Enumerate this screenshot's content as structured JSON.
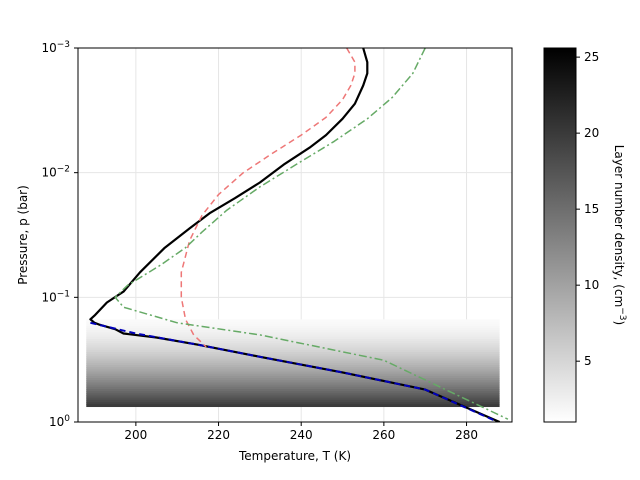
{
  "chart_data": {
    "type": "line",
    "xlabel": "Temperature, T (K)",
    "ylabel": "Pressure, p (bar)",
    "xlim": [
      186,
      291
    ],
    "ylim": [
      1.0,
      0.001
    ],
    "yscale": "log",
    "y_inverted": true,
    "grid": true,
    "legend": "none",
    "x_ticks": [
      200,
      220,
      240,
      260,
      280
    ],
    "y_ticks": [
      {
        "value": 1.0,
        "label_base": "10",
        "label_exp": "0"
      },
      {
        "value": 0.1,
        "label_base": "10",
        "label_exp": "−1"
      },
      {
        "value": 0.01,
        "label_base": "10",
        "label_exp": "−2"
      },
      {
        "value": 0.001,
        "label_base": "10",
        "label_exp": "−3"
      }
    ],
    "series": [
      {
        "color": "#000000",
        "style": "solid",
        "points": [
          [
            255,
            0.001
          ],
          [
            256,
            0.0013
          ],
          [
            256,
            0.0016
          ],
          [
            255,
            0.002
          ],
          [
            253,
            0.0028
          ],
          [
            250,
            0.0037
          ],
          [
            246,
            0.005
          ],
          [
            242,
            0.0063
          ],
          [
            236,
            0.0085
          ],
          [
            230,
            0.012
          ],
          [
            224,
            0.016
          ],
          [
            218,
            0.021
          ],
          [
            213,
            0.028
          ],
          [
            207,
            0.04
          ],
          [
            201,
            0.063
          ],
          [
            197,
            0.09
          ],
          [
            193,
            0.11
          ],
          [
            190,
            0.14
          ],
          [
            189,
            0.15
          ],
          [
            190,
            0.16
          ],
          [
            191,
            0.165
          ],
          [
            195,
            0.18
          ],
          [
            197,
            0.195
          ],
          [
            205,
            0.21
          ],
          [
            215,
            0.24
          ],
          [
            230,
            0.3
          ],
          [
            250,
            0.4
          ],
          [
            270,
            0.55
          ],
          [
            288,
            1.0
          ]
        ]
      },
      {
        "color": "#0000bb",
        "style": "dashed",
        "points": [
          [
            189,
            0.16
          ],
          [
            200,
            0.195
          ],
          [
            215,
            0.24
          ],
          [
            230,
            0.3
          ],
          [
            250,
            0.4
          ],
          [
            270,
            0.55
          ],
          [
            287,
            0.98
          ]
        ]
      },
      {
        "color": "#ee7777",
        "style": "dashed",
        "points": [
          [
            251,
            0.001
          ],
          [
            253,
            0.0013
          ],
          [
            253,
            0.0016
          ],
          [
            252,
            0.002
          ],
          [
            250,
            0.0026
          ],
          [
            246,
            0.0036
          ],
          [
            240,
            0.005
          ],
          [
            233,
            0.007
          ],
          [
            226,
            0.01
          ],
          [
            220,
            0.015
          ],
          [
            216,
            0.022
          ],
          [
            213,
            0.035
          ],
          [
            211,
            0.063
          ],
          [
            211,
            0.1
          ],
          [
            212,
            0.15
          ],
          [
            214,
            0.2
          ],
          [
            217,
            0.25
          ]
        ]
      },
      {
        "color": "#66aa66",
        "style": "dashdot",
        "points": [
          [
            270,
            0.001
          ],
          [
            267,
            0.0016
          ],
          [
            262,
            0.0025
          ],
          [
            256,
            0.0037
          ],
          [
            248,
            0.0056
          ],
          [
            239,
            0.0085
          ],
          [
            230,
            0.013
          ],
          [
            222,
            0.02
          ],
          [
            216,
            0.03
          ],
          [
            212,
            0.04
          ],
          [
            206,
            0.055
          ],
          [
            198,
            0.08
          ],
          [
            195,
            0.1
          ],
          [
            197,
            0.12
          ],
          [
            210,
            0.16
          ],
          [
            230,
            0.2
          ],
          [
            260,
            0.32
          ],
          [
            290,
            0.95
          ]
        ]
      }
    ],
    "density_band": {
      "p_range": [
        0.15,
        0.75
      ],
      "t_range": [
        188,
        288
      ]
    },
    "colorbar": {
      "label_base": "Layer number density, (cm",
      "label_exp": "−3",
      "label_close": ")",
      "range": [
        1,
        25.6
      ],
      "ticks": [
        "5",
        "10",
        "15",
        "20",
        "25"
      ],
      "tick_values": [
        5,
        10,
        15,
        20,
        25
      ]
    }
  }
}
